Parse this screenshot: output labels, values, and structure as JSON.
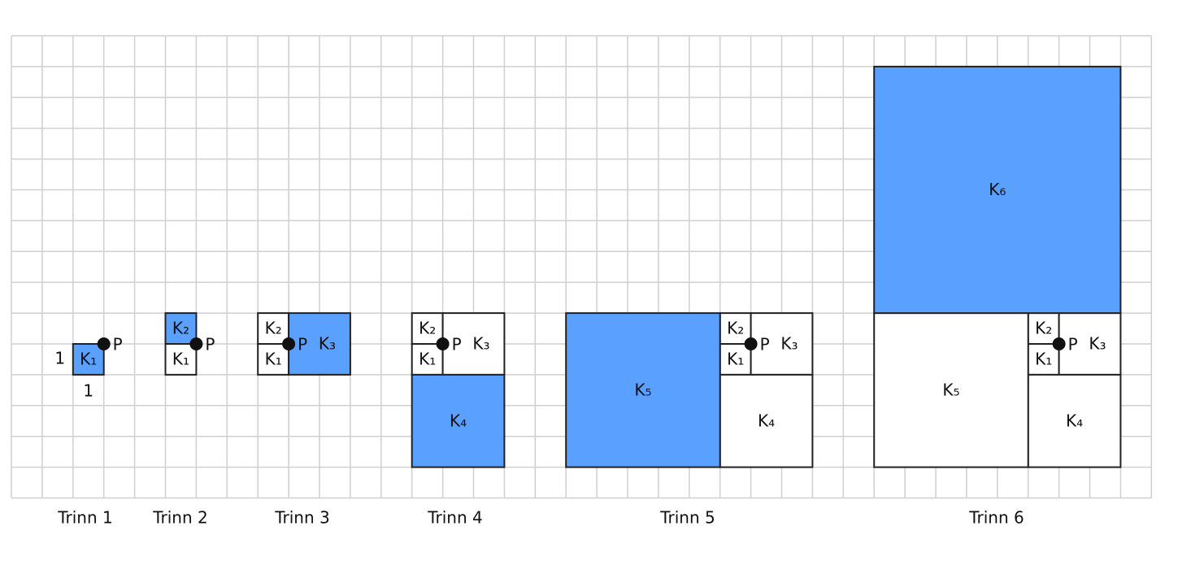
{
  "steps": [
    {
      "label": "Trinn 1",
      "squares": [
        "K₁"
      ],
      "point": "P",
      "side_labels": [
        "1",
        "1"
      ]
    },
    {
      "label": "Trinn 2",
      "squares": [
        "K₁",
        "K₂"
      ],
      "point": "P"
    },
    {
      "label": "Trinn 3",
      "squares": [
        "K₁",
        "K₂",
        "K₃"
      ],
      "point": "P"
    },
    {
      "label": "Trinn 4",
      "squares": [
        "K₁",
        "K₂",
        "K₃",
        "K₄"
      ],
      "point": "P"
    },
    {
      "label": "Trinn 5",
      "squares": [
        "K₁",
        "K₂",
        "K₃",
        "K₄",
        "K₅"
      ],
      "point": "P"
    },
    {
      "label": "Trinn 6",
      "squares": [
        "K₁",
        "K₂",
        "K₃",
        "K₄",
        "K₅",
        "K₆"
      ],
      "point": "P"
    }
  ]
}
